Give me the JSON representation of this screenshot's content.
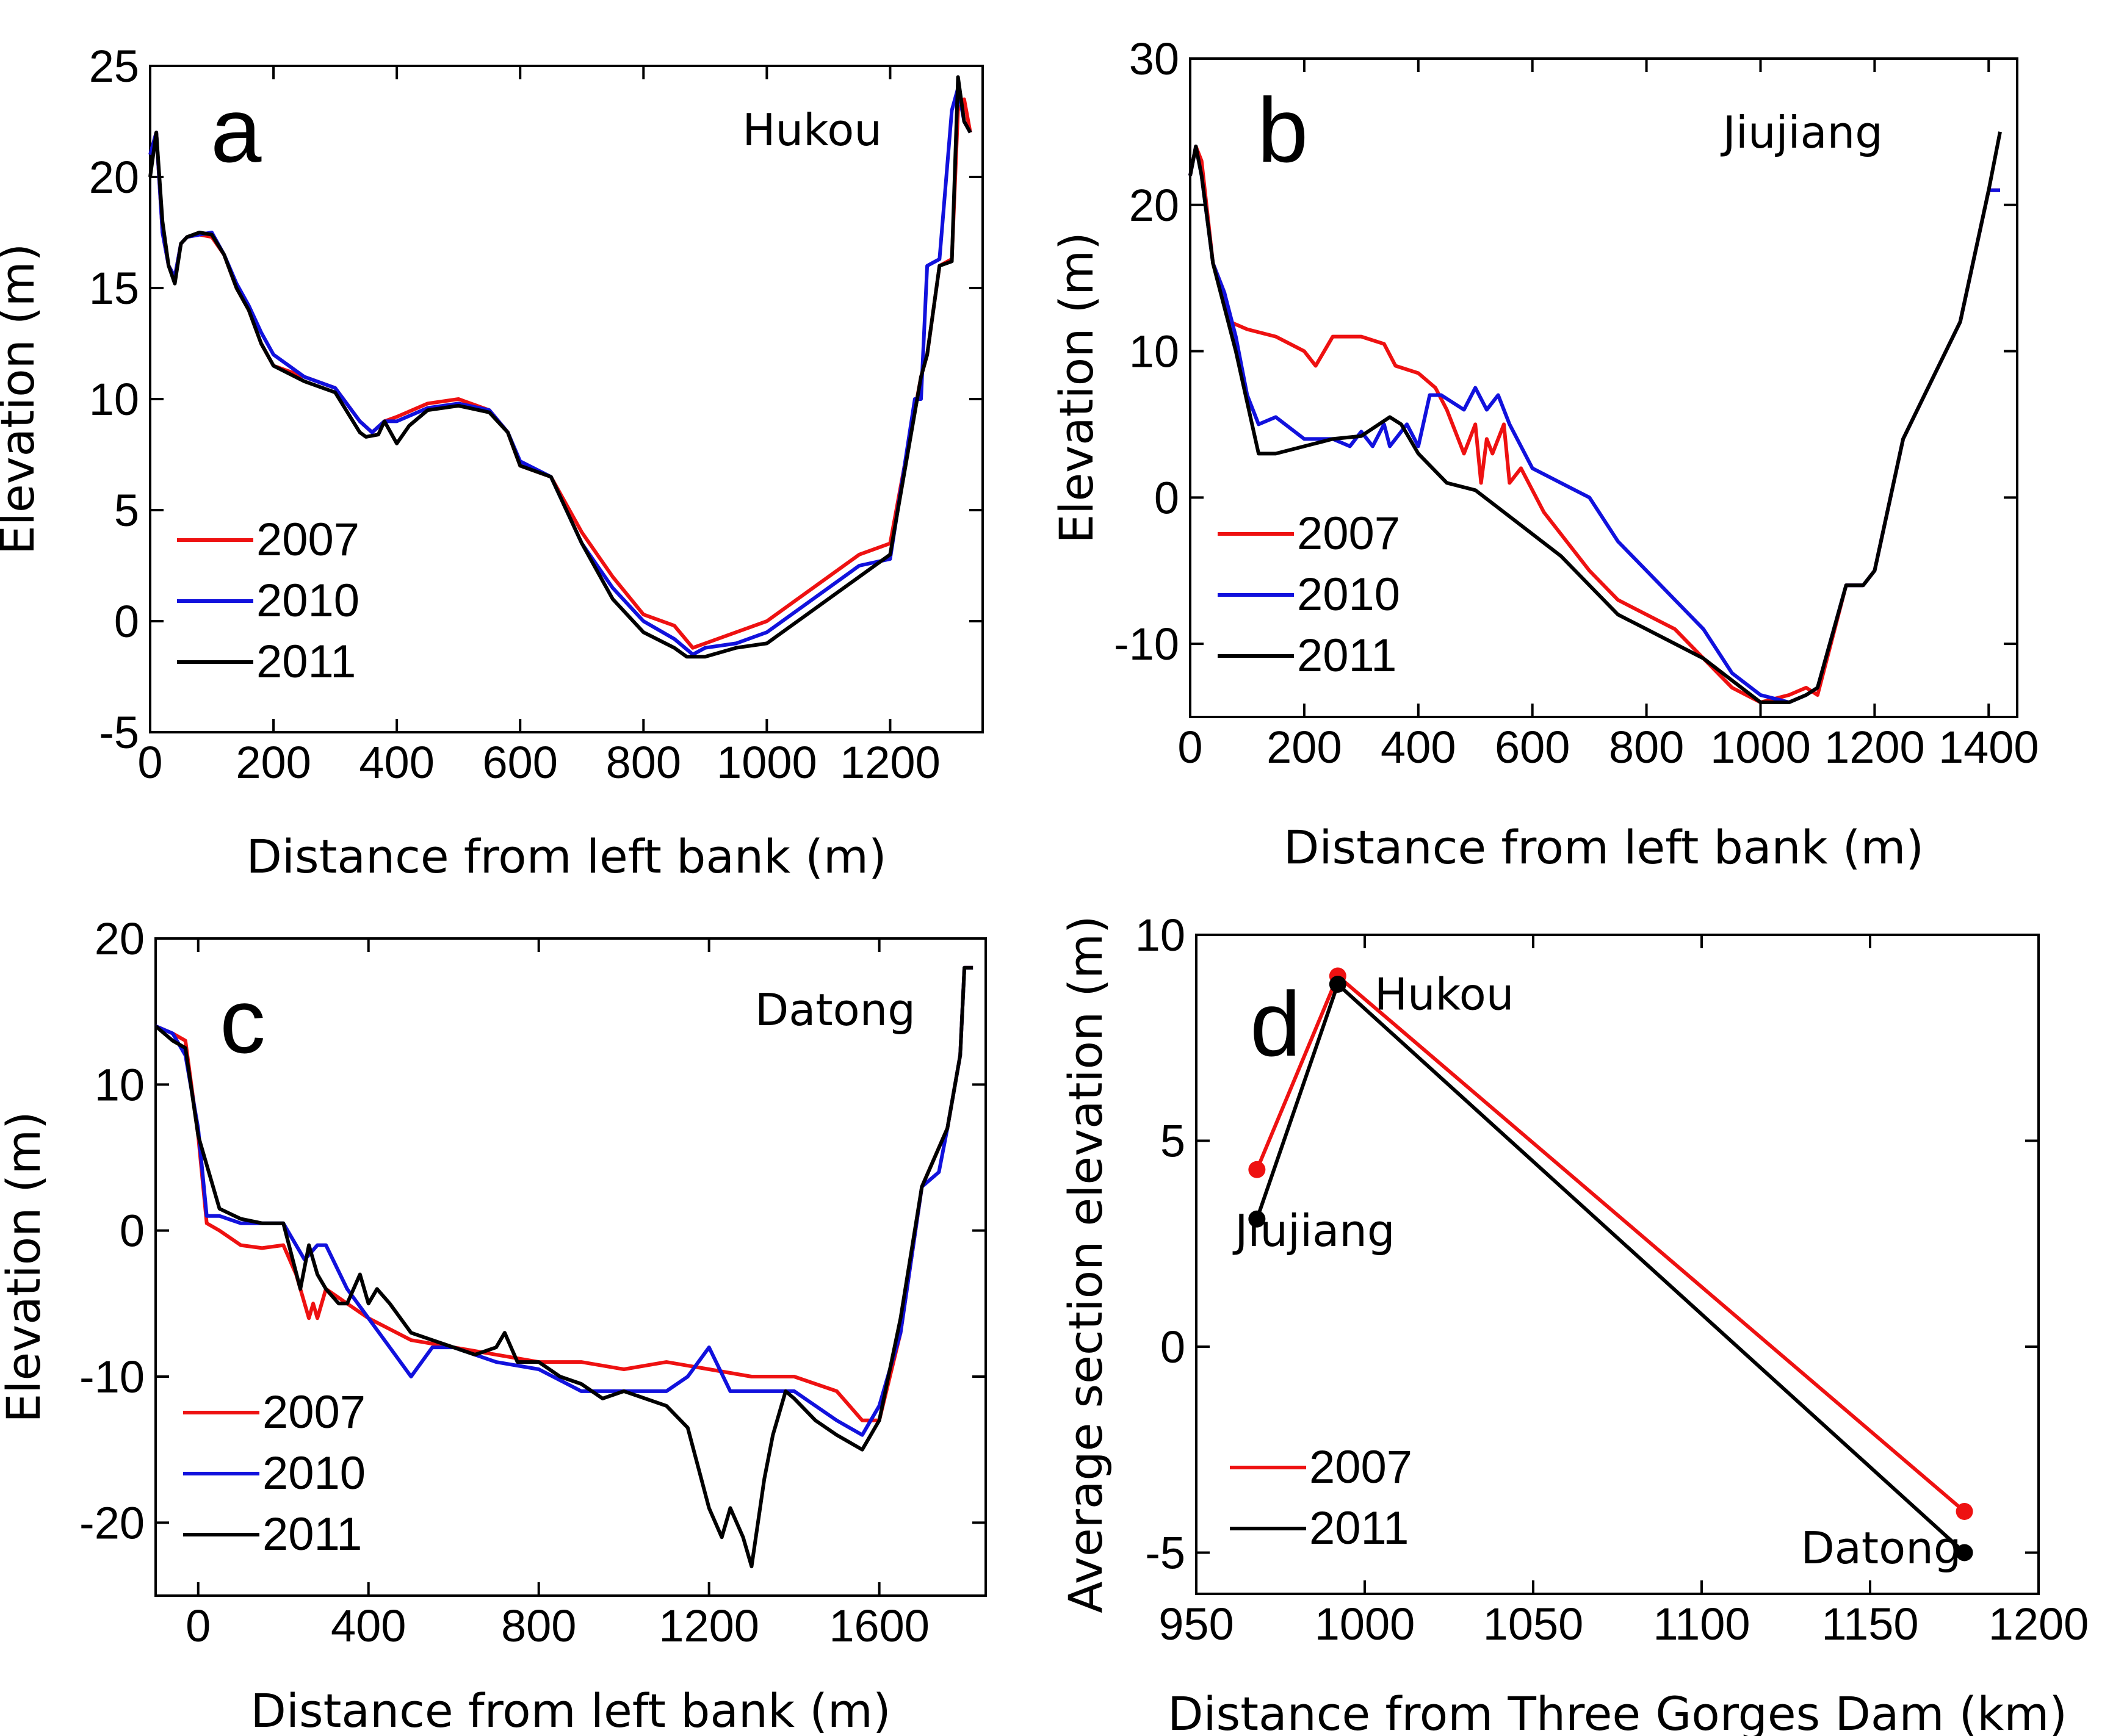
{
  "colors": {
    "2007": "#ee1111",
    "2010": "#1111dd",
    "2011": "#000000"
  },
  "chart_data": [
    {
      "id": "a",
      "type": "line",
      "panel_label": "a",
      "station": "Hukou",
      "xlabel": "Distance from left bank (m)",
      "ylabel": "Elevation (m)",
      "xlim": [
        0,
        1350
      ],
      "ylim": [
        -5,
        25
      ],
      "xticks": [
        0,
        200,
        400,
        600,
        800,
        1000,
        1200
      ],
      "yticks": [
        -5,
        0,
        5,
        10,
        15,
        20,
        25
      ],
      "legend": [
        "2007",
        "2010",
        "2011"
      ],
      "series": [
        {
          "name": "2007",
          "x": [
            0,
            10,
            20,
            30,
            40,
            50,
            60,
            80,
            100,
            120,
            140,
            160,
            180,
            200,
            250,
            300,
            340,
            360,
            380,
            400,
            450,
            500,
            550,
            580,
            600,
            650,
            700,
            750,
            800,
            850,
            880,
            900,
            950,
            1000,
            1050,
            1100,
            1150,
            1200,
            1250,
            1260,
            1280,
            1300,
            1310,
            1320,
            1330
          ],
          "y": [
            21,
            22,
            17.5,
            16,
            15.5,
            17,
            17.3,
            17.4,
            17.3,
            16.5,
            15,
            14,
            12.5,
            11.5,
            11,
            10.5,
            9,
            8.5,
            9,
            9.2,
            9.8,
            10,
            9.5,
            8.5,
            7,
            6.5,
            4,
            2,
            0.3,
            -0.2,
            -1.2,
            -1,
            -0.5,
            0,
            1,
            2,
            3,
            3.5,
            11,
            12,
            16,
            16.3,
            23,
            23.5,
            22
          ]
        },
        {
          "name": "2010",
          "x": [
            0,
            10,
            20,
            30,
            40,
            50,
            60,
            80,
            100,
            120,
            140,
            160,
            180,
            200,
            250,
            300,
            340,
            360,
            380,
            400,
            450,
            500,
            550,
            580,
            600,
            650,
            700,
            750,
            800,
            850,
            880,
            900,
            950,
            1000,
            1050,
            1100,
            1150,
            1200,
            1240,
            1250,
            1260,
            1280,
            1300,
            1310,
            1320,
            1330
          ],
          "y": [
            21,
            22,
            17.5,
            16,
            15.5,
            17,
            17.3,
            17.4,
            17.5,
            16.5,
            15.2,
            14.2,
            13,
            12,
            11,
            10.5,
            9,
            8.5,
            9,
            9,
            9.6,
            9.8,
            9.5,
            8.5,
            7.2,
            6.5,
            3.5,
            1.5,
            0,
            -0.8,
            -1.5,
            -1.2,
            -1,
            -0.5,
            0.5,
            1.5,
            2.5,
            2.8,
            10,
            10,
            16,
            16.3,
            23,
            24,
            22.5,
            22
          ]
        },
        {
          "name": "2011",
          "x": [
            0,
            10,
            20,
            30,
            40,
            50,
            60,
            80,
            100,
            120,
            140,
            160,
            180,
            200,
            250,
            300,
            340,
            350,
            370,
            380,
            400,
            420,
            450,
            500,
            550,
            580,
            600,
            650,
            700,
            750,
            800,
            850,
            870,
            900,
            950,
            1000,
            1050,
            1100,
            1150,
            1200,
            1250,
            1260,
            1280,
            1300,
            1310,
            1320,
            1330
          ],
          "y": [
            20,
            22,
            18,
            16,
            15.2,
            17,
            17.3,
            17.5,
            17.4,
            16.5,
            15,
            14,
            12.5,
            11.5,
            10.8,
            10.3,
            8.5,
            8.3,
            8.4,
            9,
            8,
            8.8,
            9.5,
            9.7,
            9.4,
            8.5,
            7,
            6.5,
            3.5,
            1,
            -0.5,
            -1.2,
            -1.6,
            -1.6,
            -1.2,
            -1,
            0,
            1,
            2,
            3,
            11,
            12,
            16,
            16.2,
            24.5,
            22.5,
            22
          ]
        }
      ]
    },
    {
      "id": "b",
      "type": "line",
      "panel_label": "b",
      "station": "Jiujiang",
      "xlabel": "Distance from left bank (m)",
      "ylabel": "Elevation (m)",
      "xlim": [
        0,
        1450
      ],
      "ylim": [
        -15,
        30
      ],
      "xticks": [
        0,
        200,
        400,
        600,
        800,
        1000,
        1200,
        1400
      ],
      "yticks": [
        -10,
        0,
        10,
        20,
        30
      ],
      "legend": [
        "2007",
        "2010",
        "2011"
      ],
      "series": [
        {
          "name": "2007",
          "x": [
            0,
            10,
            20,
            40,
            60,
            70,
            100,
            150,
            200,
            220,
            250,
            300,
            340,
            360,
            400,
            430,
            450,
            480,
            500,
            510,
            520,
            530,
            550,
            560,
            580,
            620,
            660,
            700,
            750,
            800,
            850,
            900,
            950,
            1000,
            1050,
            1080,
            1100,
            1150,
            1180,
            1200,
            1250,
            1300,
            1350,
            1400,
            1420
          ],
          "y": [
            22,
            24,
            23,
            16,
            14,
            12,
            11.5,
            11,
            10,
            9,
            11,
            11,
            10.5,
            9,
            8.5,
            7.5,
            6,
            3,
            5,
            1,
            4,
            3,
            5,
            1,
            2,
            -1,
            -3,
            -5,
            -7,
            -8,
            -9,
            -11,
            -13,
            -14,
            -13.5,
            -13,
            -13.5,
            -6,
            -6,
            -5,
            4,
            8,
            12,
            21,
            21
          ]
        },
        {
          "name": "2010",
          "x": [
            0,
            10,
            20,
            40,
            60,
            80,
            100,
            120,
            150,
            200,
            250,
            280,
            300,
            320,
            340,
            350,
            380,
            400,
            420,
            440,
            480,
            500,
            520,
            540,
            560,
            600,
            650,
            700,
            750,
            800,
            850,
            900,
            950,
            1000,
            1050,
            1080,
            1100,
            1150,
            1180,
            1200,
            1250,
            1300,
            1350,
            1400,
            1420
          ],
          "y": [
            22,
            24,
            22,
            16,
            14,
            11,
            7,
            5,
            5.5,
            4,
            4,
            3.5,
            4.5,
            3.5,
            5,
            3.5,
            5,
            3.5,
            7,
            7,
            6,
            7.5,
            6,
            7,
            5,
            2,
            1,
            0,
            -3,
            -5,
            -7,
            -9,
            -12,
            -13.5,
            -14,
            -13.5,
            -13,
            -6,
            -6,
            -5,
            4,
            8,
            12,
            21,
            21
          ]
        },
        {
          "name": "2011",
          "x": [
            0,
            10,
            20,
            40,
            60,
            80,
            100,
            120,
            150,
            200,
            250,
            300,
            350,
            370,
            400,
            450,
            500,
            550,
            600,
            650,
            700,
            750,
            800,
            850,
            900,
            950,
            1000,
            1050,
            1080,
            1100,
            1150,
            1180,
            1200,
            1250,
            1300,
            1350,
            1400,
            1420
          ],
          "y": [
            22,
            24,
            22,
            16,
            13,
            10,
            6.5,
            3,
            3,
            3.5,
            4,
            4.2,
            5.5,
            5,
            3,
            1,
            0.5,
            -1,
            -2.5,
            -4,
            -6,
            -8,
            -9,
            -10,
            -11,
            -12.5,
            -14,
            -14,
            -13.5,
            -13,
            -6,
            -6,
            -5,
            4,
            8,
            12,
            21,
            25
          ]
        }
      ]
    },
    {
      "id": "c",
      "type": "line",
      "panel_label": "c",
      "station": "Datong",
      "xlabel": "Distance from left bank (m)",
      "ylabel": "Elevation (m)",
      "xlim": [
        -100,
        1850
      ],
      "ylim": [
        -25,
        20
      ],
      "xticks": [
        0,
        400,
        800,
        1200,
        1600
      ],
      "yticks": [
        -20,
        -10,
        0,
        10,
        20
      ],
      "legend": [
        "2007",
        "2010",
        "2011"
      ],
      "series": [
        {
          "name": "2007",
          "x": [
            -100,
            -60,
            -30,
            0,
            20,
            50,
            100,
            150,
            200,
            230,
            260,
            270,
            280,
            300,
            350,
            400,
            500,
            600,
            700,
            800,
            900,
            1000,
            1100,
            1200,
            1300,
            1400,
            1500,
            1560,
            1600,
            1650,
            1700,
            1760,
            1790,
            1800,
            1820
          ],
          "y": [
            14,
            13.5,
            13,
            6.5,
            0.5,
            0,
            -1,
            -1.2,
            -1,
            -3,
            -6,
            -5,
            -6,
            -4,
            -5,
            -6,
            -7.5,
            -8,
            -8.5,
            -9,
            -9,
            -9.5,
            -9,
            -9.5,
            -10,
            -10,
            -11,
            -13,
            -13,
            -7,
            3,
            7,
            12,
            18,
            18
          ]
        },
        {
          "name": "2010",
          "x": [
            -100,
            -60,
            -30,
            0,
            20,
            50,
            100,
            150,
            200,
            250,
            280,
            300,
            350,
            400,
            450,
            500,
            550,
            600,
            700,
            800,
            900,
            1000,
            1100,
            1150,
            1200,
            1250,
            1300,
            1400,
            1500,
            1560,
            1600,
            1650,
            1700,
            1740,
            1760,
            1790,
            1800,
            1820
          ],
          "y": [
            14,
            13.5,
            12,
            7,
            1,
            1,
            0.5,
            0.5,
            0.5,
            -2,
            -1,
            -1,
            -4,
            -6,
            -8,
            -10,
            -8,
            -8,
            -9,
            -9.5,
            -11,
            -11,
            -11,
            -10,
            -8,
            -11,
            -11,
            -11,
            -13,
            -14,
            -12,
            -7,
            3,
            4,
            7,
            12,
            18,
            18
          ]
        },
        {
          "name": "2011",
          "x": [
            -100,
            -60,
            -30,
            0,
            50,
            100,
            150,
            200,
            240,
            260,
            280,
            300,
            330,
            350,
            380,
            400,
            420,
            450,
            500,
            550,
            600,
            650,
            700,
            720,
            750,
            800,
            850,
            900,
            950,
            1000,
            1100,
            1150,
            1200,
            1230,
            1250,
            1280,
            1300,
            1330,
            1350,
            1380,
            1400,
            1450,
            1500,
            1560,
            1600,
            1650,
            1700,
            1760,
            1790,
            1800,
            1820
          ],
          "y": [
            14,
            13,
            12.5,
            6.5,
            1.5,
            0.8,
            0.5,
            0.5,
            -4,
            -1,
            -3,
            -4,
            -5,
            -5,
            -3,
            -5,
            -4,
            -5,
            -7,
            -7.5,
            -8,
            -8.5,
            -8,
            -7,
            -9,
            -9,
            -10,
            -10.5,
            -11.5,
            -11,
            -12,
            -13.5,
            -19,
            -21,
            -19,
            -21,
            -23,
            -17,
            -14,
            -11,
            -11.5,
            -13,
            -14,
            -15,
            -13,
            -6,
            3,
            7,
            12,
            18,
            18
          ]
        }
      ]
    },
    {
      "id": "d",
      "type": "line",
      "panel_label": "d",
      "xlabel": "Distance from Three Gorges Dam (km)",
      "ylabel": "Average section elevation (m)",
      "xlim": [
        950,
        1200
      ],
      "ylim": [
        -6,
        10
      ],
      "xticks": [
        950,
        1000,
        1050,
        1100,
        1150,
        1200
      ],
      "yticks": [
        -5,
        0,
        5,
        10
      ],
      "legend": [
        "2007",
        "2011"
      ],
      "annotations": [
        "Hukou",
        "Jiujiang",
        "Datong"
      ],
      "series": [
        {
          "name": "2007",
          "x": [
            968,
            992,
            1178
          ],
          "y": [
            4.3,
            9.0,
            -4.0
          ]
        },
        {
          "name": "2011",
          "x": [
            968,
            992,
            1178
          ],
          "y": [
            3.1,
            8.8,
            -5.0
          ]
        }
      ]
    }
  ]
}
